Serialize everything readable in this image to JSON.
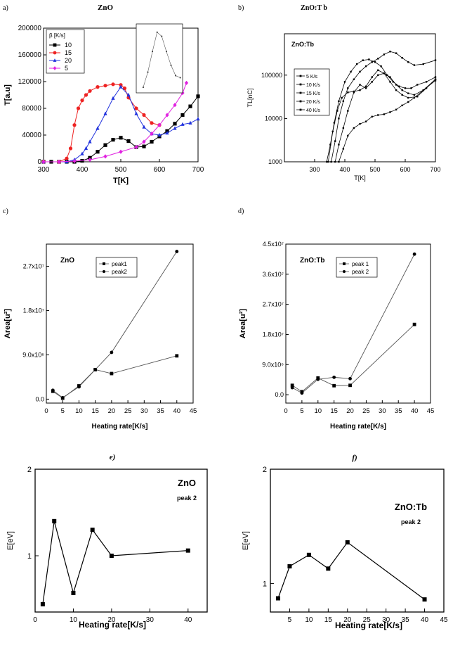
{
  "chart_data": [
    {
      "id": "a",
      "type": "scatter",
      "panel_label": "a)",
      "title": "ZnO",
      "xlabel": "T[K]",
      "ylabel": "T[a.u]",
      "xlim": [
        300,
        700
      ],
      "ylim": [
        0,
        200000
      ],
      "xticks": [
        300,
        400,
        500,
        600,
        700
      ],
      "yticks": [
        0,
        40000,
        80000,
        120000,
        160000,
        200000
      ],
      "legend_title": "β [K/s]",
      "series": [
        {
          "name": "10",
          "color": "#000000",
          "marker": "square",
          "x": [
            300,
            320,
            340,
            360,
            380,
            400,
            420,
            440,
            460,
            480,
            500,
            520,
            540,
            560,
            580,
            600,
            620,
            640,
            660,
            680,
            700
          ],
          "y": [
            0,
            0,
            0,
            0,
            0,
            1500,
            6000,
            15000,
            25000,
            33000,
            36000,
            31000,
            22000,
            23000,
            30000,
            38000,
            46000,
            57000,
            70000,
            83000,
            98000
          ]
        },
        {
          "name": "15",
          "color": "#ee2222",
          "marker": "circle",
          "x": [
            300,
            340,
            360,
            370,
            380,
            390,
            400,
            410,
            420,
            440,
            460,
            480,
            500,
            510,
            520,
            540,
            560,
            580,
            600
          ],
          "y": [
            0,
            0,
            5000,
            20000,
            55000,
            80000,
            92000,
            100000,
            106000,
            112000,
            114000,
            116000,
            115000,
            110000,
            96000,
            80000,
            70000,
            58000,
            55000
          ]
        },
        {
          "name": "20",
          "color": "#2233dd",
          "marker": "triangle",
          "x": [
            300,
            360,
            380,
            400,
            410,
            420,
            440,
            460,
            480,
            500,
            520,
            540,
            560,
            580,
            600,
            620,
            640,
            660,
            680,
            700
          ],
          "y": [
            0,
            0,
            3000,
            12000,
            20000,
            30000,
            50000,
            72000,
            95000,
            112000,
            100000,
            72000,
            52000,
            42000,
            40000,
            43000,
            50000,
            56000,
            58000,
            64000
          ]
        },
        {
          "name": "5",
          "color": "#e020e0",
          "marker": "diamond",
          "x": [
            300,
            340,
            380,
            420,
            460,
            500,
            540,
            560,
            580,
            600,
            620,
            640,
            660,
            670
          ],
          "y": [
            0,
            0,
            1000,
            3000,
            8000,
            15000,
            22000,
            30000,
            42000,
            55000,
            70000,
            85000,
            103000,
            118000
          ]
        }
      ]
    },
    {
      "id": "b",
      "type": "line",
      "panel_label": "b)",
      "title": "ZnO:T b",
      "inner_label": "ZnO:Tb",
      "xlabel": "T[K]",
      "ylabel": "TL[nC]",
      "xlim": [
        200,
        700
      ],
      "yscale": "log",
      "ylim": [
        1000,
        900000
      ],
      "xticks": [
        300,
        400,
        500,
        600,
        700
      ],
      "yticks": [
        1000,
        10000,
        100000
      ],
      "series": [
        {
          "name": "5 K/s",
          "color": "#000000",
          "x": [
            368,
            380,
            395,
            410,
            430,
            450,
            470,
            490,
            510,
            530,
            550,
            570,
            590,
            610,
            630,
            660,
            700
          ],
          "y": [
            1000,
            2500,
            6000,
            15000,
            40000,
            60000,
            50000,
            70000,
            100000,
            110000,
            90000,
            60000,
            45000,
            38000,
            35000,
            45000,
            80000
          ]
        },
        {
          "name": "10 K/s",
          "color": "#000000",
          "x": [
            340,
            352,
            365,
            380,
            400,
            420,
            440,
            460,
            480,
            500,
            520,
            540,
            560,
            580,
            600,
            620,
            640,
            670,
            700
          ],
          "y": [
            1000,
            2500,
            8000,
            25000,
            70000,
            120000,
            180000,
            220000,
            230000,
            200000,
            160000,
            100000,
            70000,
            55000,
            50000,
            50000,
            60000,
            70000,
            90000
          ]
        },
        {
          "name": "15 K/s",
          "color": "#000000",
          "x": [
            355,
            368,
            380,
            395,
            410,
            430,
            450,
            470,
            490,
            510,
            530,
            550,
            570,
            590,
            610,
            630,
            660,
            700
          ],
          "y": [
            1000,
            3000,
            10000,
            25000,
            50000,
            80000,
            120000,
            160000,
            200000,
            240000,
            300000,
            350000,
            320000,
            250000,
            200000,
            170000,
            180000,
            220000
          ]
        },
        {
          "name": "20 K/s",
          "color": "#000000",
          "x": [
            345,
            360,
            375,
            390,
            410,
            430,
            450,
            470,
            490,
            510,
            530,
            550,
            570,
            590,
            610,
            640,
            670,
            700
          ],
          "y": [
            1000,
            5000,
            15000,
            30000,
            40000,
            42000,
            45000,
            55000,
            90000,
            130000,
            110000,
            70000,
            45000,
            35000,
            30000,
            32000,
            50000,
            80000
          ]
        },
        {
          "name": "40 K/s",
          "color": "#000000",
          "x": [
            380,
            395,
            410,
            430,
            450,
            470,
            490,
            510,
            530,
            550,
            570,
            590,
            610,
            630,
            660,
            700
          ],
          "y": [
            1000,
            2000,
            4000,
            6000,
            7500,
            8500,
            11000,
            12000,
            12500,
            14000,
            16000,
            20000,
            24000,
            30000,
            45000,
            75000
          ]
        }
      ]
    },
    {
      "id": "c",
      "type": "line",
      "panel_label": "c)",
      "title": "ZnO",
      "xlabel": "Heating rate[K/s]",
      "ylabel": "Area[u²]",
      "xlim": [
        0,
        45
      ],
      "ylim": [
        -800000,
        31500000
      ],
      "xticks": [
        0,
        5,
        10,
        15,
        20,
        25,
        30,
        35,
        40,
        45
      ],
      "ytick_labels": [
        "0.0",
        "9.0x10⁶",
        "1.8x10⁷",
        "2.7x10⁷"
      ],
      "ytick_values": [
        0,
        9000000,
        18000000,
        27000000
      ],
      "series": [
        {
          "name": "peak1",
          "marker": "square",
          "x": [
            2,
            5,
            10,
            15,
            20,
            40
          ],
          "y": [
            1600000,
            200000,
            2700000,
            6000000,
            5200000,
            8800000
          ]
        },
        {
          "name": "peak2",
          "marker": "circle",
          "x": [
            2,
            5,
            10,
            15,
            20,
            40
          ],
          "y": [
            1800000,
            300000,
            2500000,
            6000000,
            9500000,
            30000000
          ]
        }
      ]
    },
    {
      "id": "d",
      "type": "line",
      "panel_label": "d)",
      "title": "ZnO:Tb",
      "xlabel": "Heating rate[K/s]",
      "ylabel": "Area[u²]",
      "xlim": [
        0,
        45
      ],
      "ylim": [
        -2500000,
        45000000
      ],
      "xticks": [
        0,
        5,
        10,
        15,
        20,
        25,
        30,
        35,
        40,
        45
      ],
      "ytick_labels": [
        "0.0",
        "9.0x10⁶",
        "1.8x10⁷",
        "2.7x10⁷",
        "3.6x10⁷",
        "4.5x10⁷"
      ],
      "ytick_values": [
        0,
        9000000,
        18000000,
        27000000,
        36000000,
        45000000
      ],
      "series": [
        {
          "name": "peak 1",
          "marker": "square",
          "x": [
            2,
            5,
            10,
            15,
            20,
            40
          ],
          "y": [
            2800000,
            900000,
            5000000,
            2700000,
            2800000,
            21000000
          ]
        },
        {
          "name": "peak 2",
          "marker": "circle",
          "x": [
            2,
            5,
            10,
            15,
            20,
            40
          ],
          "y": [
            2100000,
            500000,
            4600000,
            5200000,
            4800000,
            42000000
          ]
        }
      ]
    },
    {
      "id": "e",
      "type": "line",
      "panel_label": "e)",
      "title": "ZnO",
      "subtitle": "peak 2",
      "xlabel": "Heating rate[K/s]",
      "ylabel": "E[eV]",
      "xlim": [
        0,
        45
      ],
      "ylim": [
        0.35,
        2
      ],
      "xticks": [
        0,
        10,
        20,
        30,
        40
      ],
      "yticks": [
        1,
        2
      ],
      "series": [
        {
          "name": "peak 2",
          "marker": "square",
          "x": [
            2,
            5,
            10,
            15,
            20,
            40
          ],
          "y": [
            0.44,
            1.4,
            0.57,
            1.3,
            1.0,
            1.06
          ]
        }
      ]
    },
    {
      "id": "f",
      "type": "line",
      "panel_label": "f)",
      "title": "ZnO:Tb",
      "subtitle": "peak 2",
      "xlabel": "Heating rate[K/s]",
      "ylabel": "E[eV]",
      "xlim": [
        0,
        45
      ],
      "ylim": [
        0.75,
        2
      ],
      "xticks": [
        5,
        10,
        15,
        20,
        25,
        30,
        35,
        40,
        45
      ],
      "yticks": [
        1,
        2
      ],
      "series": [
        {
          "name": "peak 2",
          "marker": "square",
          "x": [
            2,
            5,
            10,
            15,
            20,
            40
          ],
          "y": [
            0.87,
            1.15,
            1.25,
            1.13,
            1.36,
            0.86
          ]
        }
      ]
    }
  ]
}
